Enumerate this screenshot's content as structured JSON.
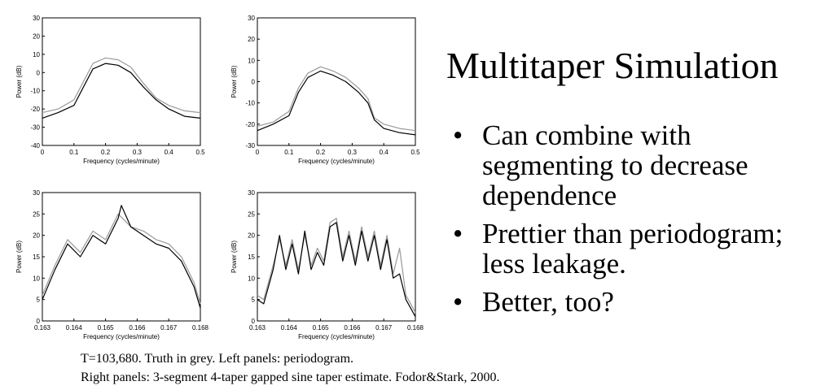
{
  "slide": {
    "title": "Multitaper Simulation",
    "bullets": [
      "Can combine with segmenting to decrease dependence",
      "Prettier than periodogram; less leakage.",
      "Better, too?"
    ],
    "bullet_char": "•",
    "caption_line1": "T=103,680. Truth in grey. Left panels: periodogram.",
    "caption_line2": "Right panels: 3-segment 4-taper gapped sine taper estimate.   Fodor&Stark, 2000."
  },
  "chart_data": [
    {
      "type": "line",
      "xlabel": "Frequency (cycles/minute)",
      "ylabel": "Power (dB)",
      "xlim": [
        0,
        0.5
      ],
      "ylim": [
        -40,
        30
      ],
      "xticks": [
        "0",
        "0.1",
        "0.2",
        "0.3",
        "0.4",
        "0.5"
      ],
      "yticks": [
        "-40",
        "-30",
        "-20",
        "-10",
        "0",
        "10",
        "20",
        "30"
      ],
      "series": [
        {
          "color": "#000000",
          "x": [
            0,
            0.05,
            0.1,
            0.13,
            0.16,
            0.2,
            0.24,
            0.28,
            0.32,
            0.36,
            0.4,
            0.45,
            0.5
          ],
          "y": [
            -25,
            -22,
            -18,
            -8,
            2,
            5,
            4,
            0,
            -8,
            -15,
            -20,
            -24,
            -25
          ]
        },
        {
          "color": "#999999",
          "x": [
            0,
            0.05,
            0.1,
            0.13,
            0.16,
            0.2,
            0.24,
            0.28,
            0.32,
            0.36,
            0.4,
            0.45,
            0.5
          ],
          "y": [
            -22,
            -20,
            -15,
            -5,
            5,
            8,
            7,
            3,
            -6,
            -14,
            -18,
            -21,
            -22
          ]
        }
      ]
    },
    {
      "type": "line",
      "xlabel": "Frequency (cycles/minute)",
      "ylabel": "Power (dB)",
      "xlim": [
        0,
        0.5
      ],
      "ylim": [
        -30,
        30
      ],
      "xticks": [
        "0",
        "0.1",
        "0.2",
        "0.3",
        "0.4",
        "0.5"
      ],
      "yticks": [
        "-30",
        "-20",
        "-10",
        "0",
        "10",
        "20",
        "30"
      ],
      "series": [
        {
          "color": "#000000",
          "x": [
            0,
            0.05,
            0.1,
            0.13,
            0.16,
            0.2,
            0.24,
            0.28,
            0.32,
            0.35,
            0.37,
            0.4,
            0.45,
            0.5
          ],
          "y": [
            -23,
            -20,
            -16,
            -5,
            2,
            5,
            3,
            0,
            -5,
            -10,
            -18,
            -22,
            -24,
            -25
          ]
        },
        {
          "color": "#999999",
          "x": [
            0,
            0.05,
            0.1,
            0.13,
            0.16,
            0.2,
            0.24,
            0.28,
            0.32,
            0.35,
            0.37,
            0.4,
            0.45,
            0.5
          ],
          "y": [
            -21,
            -19,
            -14,
            -3,
            4,
            7,
            5,
            2,
            -3,
            -8,
            -17,
            -20,
            -22,
            -23
          ]
        }
      ]
    },
    {
      "type": "line",
      "xlabel": "Frequency (cycles/minute)",
      "ylabel": "Power (dB)",
      "xlim": [
        0.163,
        0.168
      ],
      "ylim": [
        0,
        30
      ],
      "xticks": [
        "0.163",
        "0.164",
        "0.165",
        "0.166",
        "0.167",
        "0.168"
      ],
      "yticks": [
        "0",
        "5",
        "10",
        "15",
        "20",
        "25",
        "30"
      ],
      "series": [
        {
          "color": "#000000",
          "x": [
            0.163,
            0.1634,
            0.1638,
            0.1642,
            0.1646,
            0.165,
            0.1654,
            0.1655,
            0.1658,
            0.1662,
            0.1666,
            0.167,
            0.1674,
            0.1678,
            0.168
          ],
          "y": [
            5,
            12,
            18,
            15,
            20,
            18,
            24,
            27,
            22,
            20,
            18,
            17,
            14,
            8,
            3
          ]
        },
        {
          "color": "#999999",
          "x": [
            0.163,
            0.1634,
            0.1638,
            0.1642,
            0.1646,
            0.165,
            0.1654,
            0.1658,
            0.1662,
            0.1666,
            0.167,
            0.1674,
            0.1678,
            0.168
          ],
          "y": [
            6,
            13,
            19,
            16,
            21,
            19,
            25,
            22,
            21,
            19,
            18,
            15,
            9,
            4
          ]
        }
      ]
    },
    {
      "type": "line",
      "xlabel": "Frequency (cycles/minute)",
      "ylabel": "Power (dB)",
      "xlim": [
        0.163,
        0.168
      ],
      "ylim": [
        0,
        30
      ],
      "xticks": [
        "0.163",
        "0.164",
        "0.165",
        "0.166",
        "0.167",
        "0.168"
      ],
      "yticks": [
        "0",
        "5",
        "10",
        "15",
        "20",
        "25",
        "30"
      ],
      "series": [
        {
          "color": "#000000",
          "x": [
            0.163,
            0.1632,
            0.1635,
            0.1637,
            0.1639,
            0.1641,
            0.1643,
            0.1645,
            0.1647,
            0.1649,
            0.1651,
            0.1653,
            0.1655,
            0.1657,
            0.1659,
            0.1661,
            0.1663,
            0.1665,
            0.1667,
            0.1669,
            0.1671,
            0.1673,
            0.1675,
            0.1677,
            0.168
          ],
          "y": [
            5,
            4,
            12,
            20,
            12,
            18,
            11,
            21,
            12,
            16,
            13,
            22,
            23,
            14,
            20,
            13,
            21,
            14,
            20,
            12,
            19,
            10,
            11,
            5,
            1
          ]
        },
        {
          "color": "#999999",
          "x": [
            0.163,
            0.1632,
            0.1635,
            0.1637,
            0.1639,
            0.1641,
            0.1643,
            0.1645,
            0.1647,
            0.1649,
            0.1651,
            0.1653,
            0.1655,
            0.1657,
            0.1659,
            0.1661,
            0.1663,
            0.1665,
            0.1667,
            0.1669,
            0.1671,
            0.1673,
            0.1675,
            0.1677,
            0.168
          ],
          "y": [
            6,
            5,
            13,
            19,
            13,
            19,
            12,
            20,
            13,
            17,
            14,
            23,
            24,
            15,
            21,
            14,
            22,
            15,
            21,
            13,
            20,
            11,
            17,
            6,
            2
          ]
        }
      ]
    }
  ]
}
